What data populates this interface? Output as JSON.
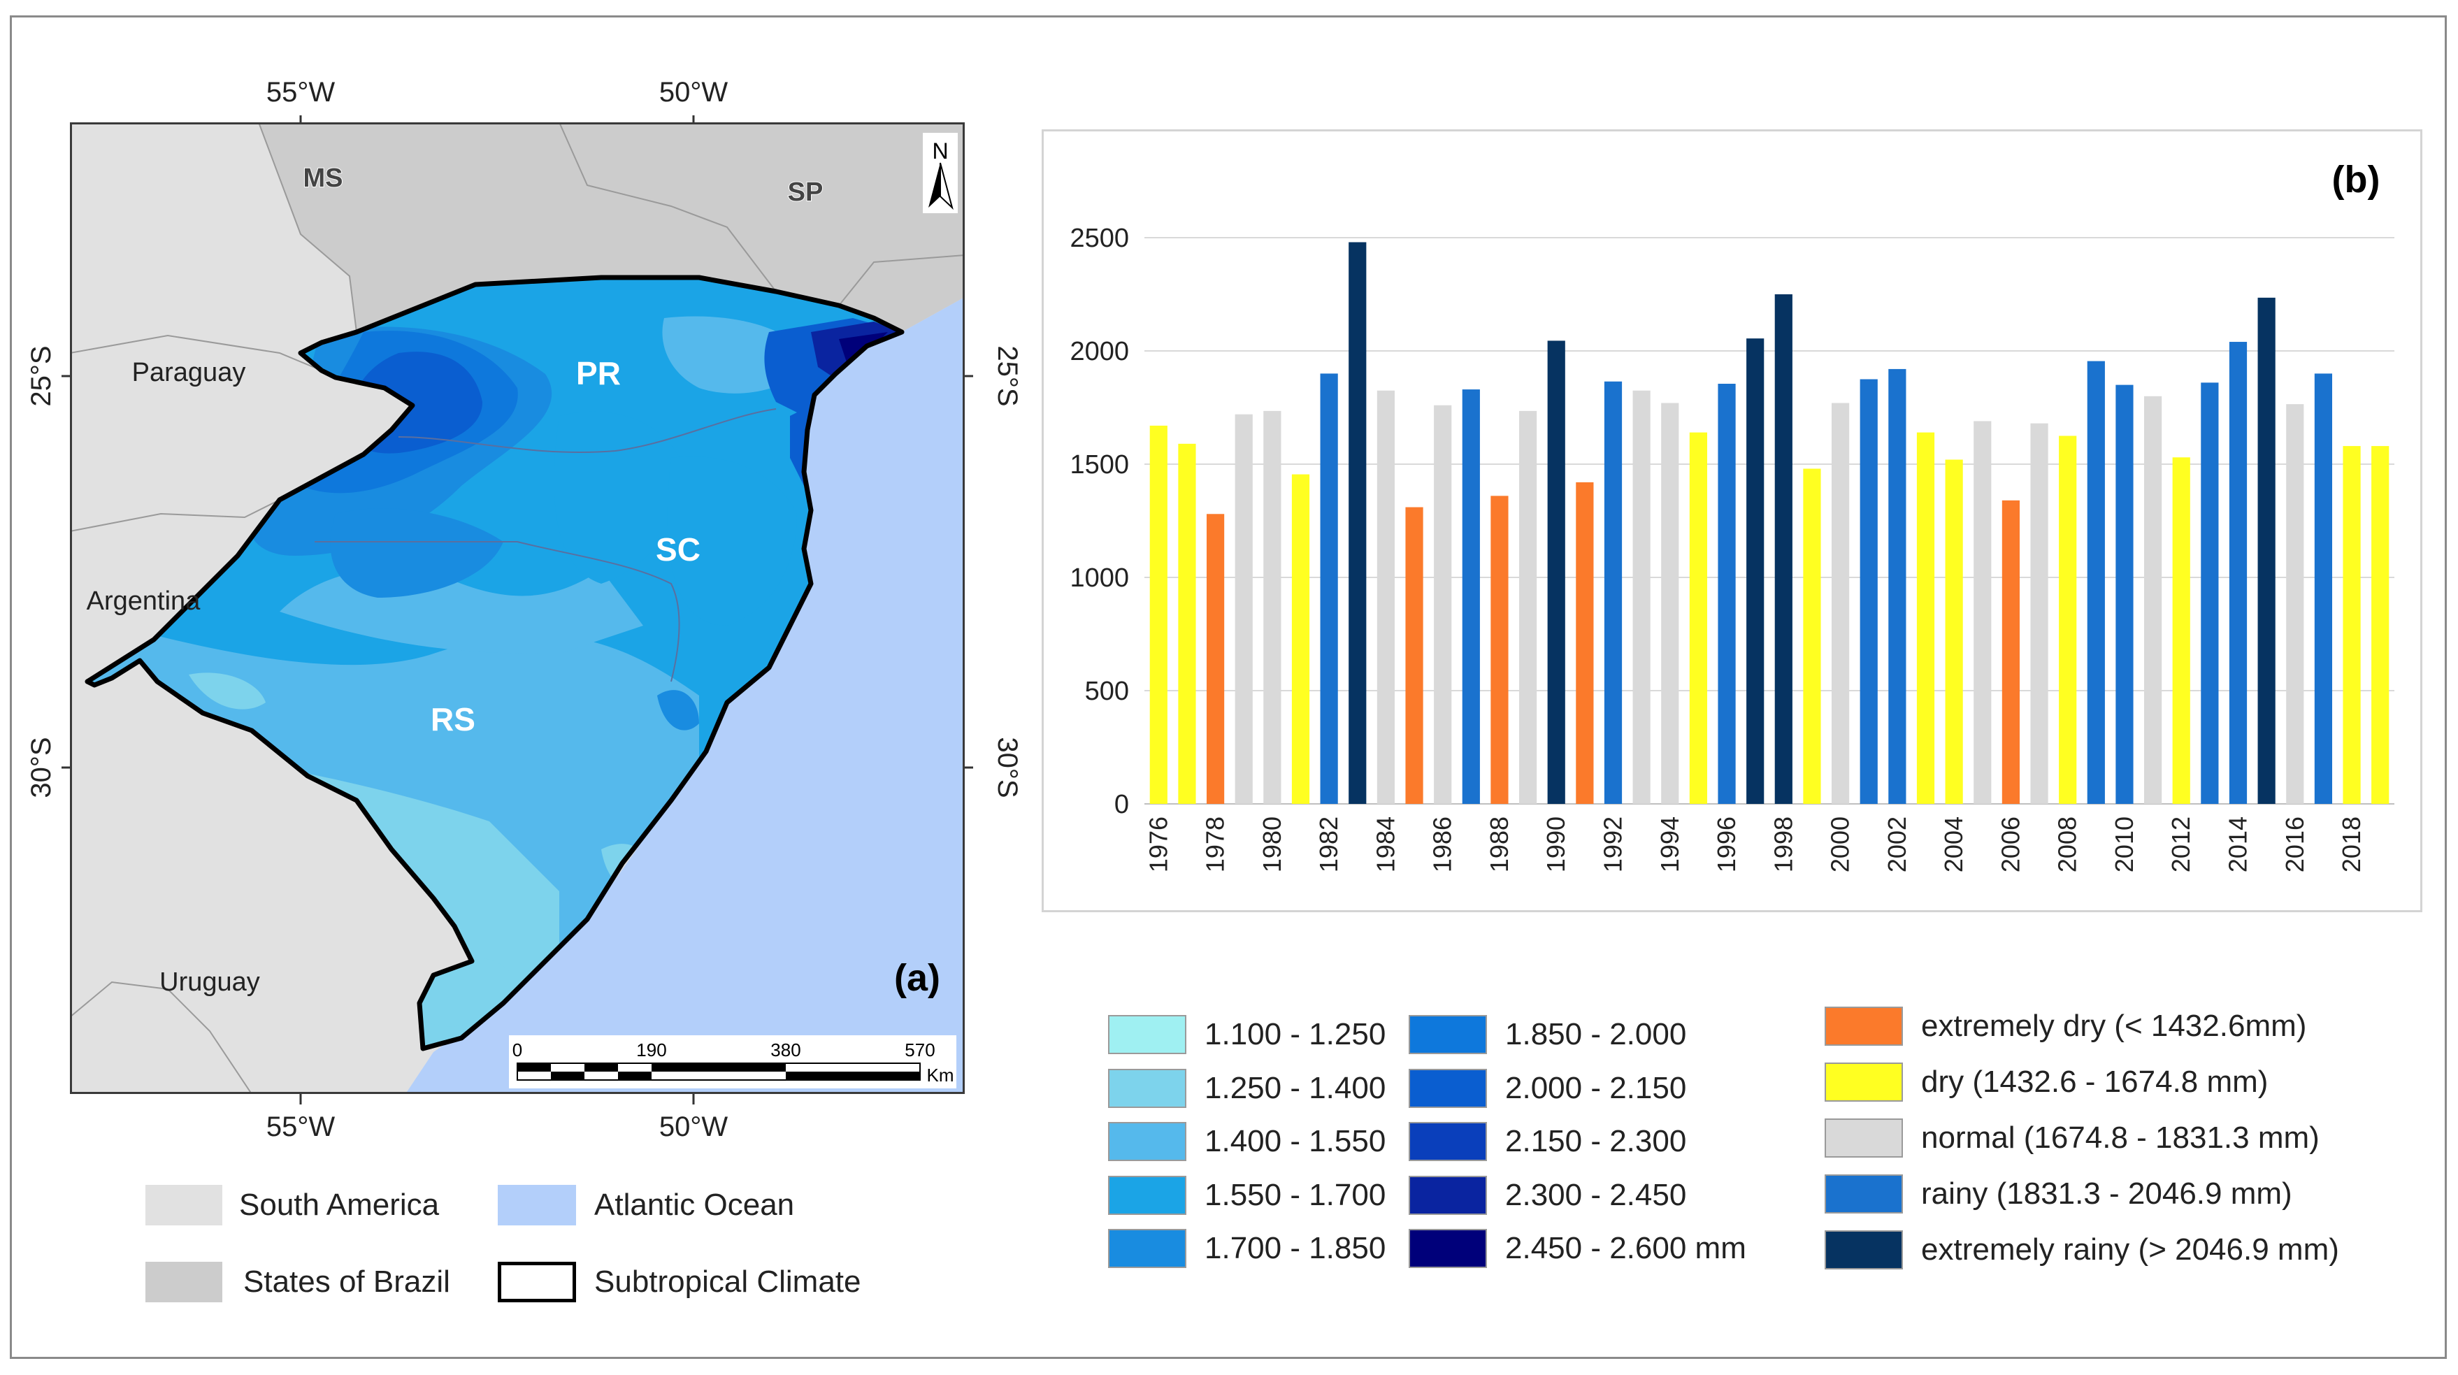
{
  "map": {
    "panel_label": "(a)",
    "coords_top": [
      "55°W",
      "50°W"
    ],
    "coords_bottom": [
      "55°W",
      "50°W"
    ],
    "coords_left": [
      "25°S",
      "30°S"
    ],
    "coords_right": [
      "25°S",
      "30°S"
    ],
    "north_arrow": "N",
    "region_labels": {
      "ms": "MS",
      "sp": "SP",
      "pr": "PR",
      "sc": "SC",
      "rs": "RS"
    },
    "country_labels": {
      "paraguay": "Paraguay",
      "argentina": "Argentina",
      "uruguay": "Uruguay"
    },
    "scale_bar": {
      "ticks": [
        "0",
        "190",
        "380",
        "570"
      ],
      "unit": "Km"
    },
    "colors": {
      "south_america": "#e1e1e1",
      "states_of_brazil": "#cccccc",
      "atlantic_ocean": "#b3cffa",
      "boundary": "#000000"
    }
  },
  "precip_legend": {
    "left": [
      {
        "label": "1.100 - 1.250",
        "color": "#9ff0f2"
      },
      {
        "label": "1.250 - 1.400",
        "color": "#7dd3ec"
      },
      {
        "label": "1.400 - 1.550",
        "color": "#55b9ec"
      },
      {
        "label": "1.550 - 1.700",
        "color": "#1ba4e6"
      },
      {
        "label": "1.700 - 1.850",
        "color": "#198ce0"
      }
    ],
    "right": [
      {
        "label": "1.850 - 2.000",
        "color": "#0e78dc"
      },
      {
        "label": "2.000 - 2.150",
        "color": "#0a5ed0"
      },
      {
        "label": "2.150 - 2.300",
        "color": "#0a3fbb"
      },
      {
        "label": "2.300 - 2.450",
        "color": "#0a24a0"
      },
      {
        "label": "2.450 - 2.600 mm",
        "color": "#00007a"
      }
    ]
  },
  "map_legend": [
    {
      "label": "South America",
      "color": "#e1e1e1",
      "style": "fill"
    },
    {
      "label": "Atlantic Ocean",
      "color": "#b3cffa",
      "style": "fill"
    },
    {
      "label": "States of Brazil",
      "color": "#cccccc",
      "style": "fill"
    },
    {
      "label": "Subtropical Climate",
      "color": "#000000",
      "style": "outline"
    }
  ],
  "class_legend": [
    {
      "label": "extremely dry (< 1432.6mm)",
      "color": "#fb7a2b"
    },
    {
      "label": "dry (1432.6 - 1674.8 mm)",
      "color": "#ffff21"
    },
    {
      "label": "normal (1674.8 - 1831.3 mm)",
      "color": "#d9d9d9"
    },
    {
      "label": "rainy (1831.3 - 2046.9 mm)",
      "color": "#1a72ce"
    },
    {
      "label": "extremely rainy (> 2046.9 mm)",
      "color": "#063361"
    }
  ],
  "chart_data": {
    "type": "bar",
    "panel_label": "(b)",
    "title": "",
    "xlabel": "",
    "ylabel": "",
    "ylim": [
      0,
      2500
    ],
    "yticks": [
      0,
      500,
      1000,
      1500,
      2000,
      2500
    ],
    "grid": true,
    "years": [
      1976,
      1977,
      1978,
      1979,
      1980,
      1981,
      1982,
      1983,
      1984,
      1985,
      1986,
      1987,
      1988,
      1989,
      1990,
      1991,
      1992,
      1993,
      1994,
      1995,
      1996,
      1997,
      1998,
      1999,
      2000,
      2001,
      2002,
      2003,
      2004,
      2005,
      2006,
      2007,
      2008,
      2009,
      2010,
      2011,
      2012,
      2013,
      2014,
      2015,
      2016,
      2017,
      2018,
      2019
    ],
    "xtick_labels": [
      "1976",
      "1978",
      "1980",
      "1982",
      "1984",
      "1986",
      "1988",
      "1990",
      "1992",
      "1994",
      "1996",
      "1998",
      "2000",
      "2002",
      "2004",
      "2006",
      "2008",
      "2010",
      "2012",
      "2014",
      "2016",
      "2018"
    ],
    "values": [
      1670,
      1590,
      1280,
      1720,
      1735,
      1455,
      1900,
      2480,
      1825,
      1310,
      1760,
      1830,
      1360,
      1735,
      2045,
      1420,
      1865,
      1825,
      1770,
      1640,
      1855,
      2055,
      2250,
      1480,
      1770,
      1875,
      1920,
      1640,
      1520,
      1690,
      1340,
      1680,
      1625,
      1955,
      1850,
      1800,
      1530,
      1860,
      2040,
      2235,
      1765,
      1900,
      1580,
      1580
    ],
    "classes": [
      "dry",
      "dry",
      "extremely dry",
      "normal",
      "normal",
      "dry",
      "rainy",
      "extremely rainy",
      "normal",
      "extremely dry",
      "normal",
      "rainy",
      "extremely dry",
      "normal",
      "extremely rainy",
      "extremely dry",
      "rainy",
      "normal",
      "normal",
      "dry",
      "rainy",
      "extremely rainy",
      "extremely rainy",
      "dry",
      "normal",
      "rainy",
      "rainy",
      "dry",
      "dry",
      "normal",
      "extremely dry",
      "normal",
      "dry",
      "rainy",
      "rainy",
      "normal",
      "dry",
      "rainy",
      "rainy",
      "extremely rainy",
      "normal",
      "rainy",
      "dry",
      "dry"
    ],
    "class_colors": {
      "extremely dry": "#fb7a2b",
      "dry": "#ffff21",
      "normal": "#d9d9d9",
      "rainy": "#1a72ce",
      "extremely rainy": "#063361"
    }
  }
}
